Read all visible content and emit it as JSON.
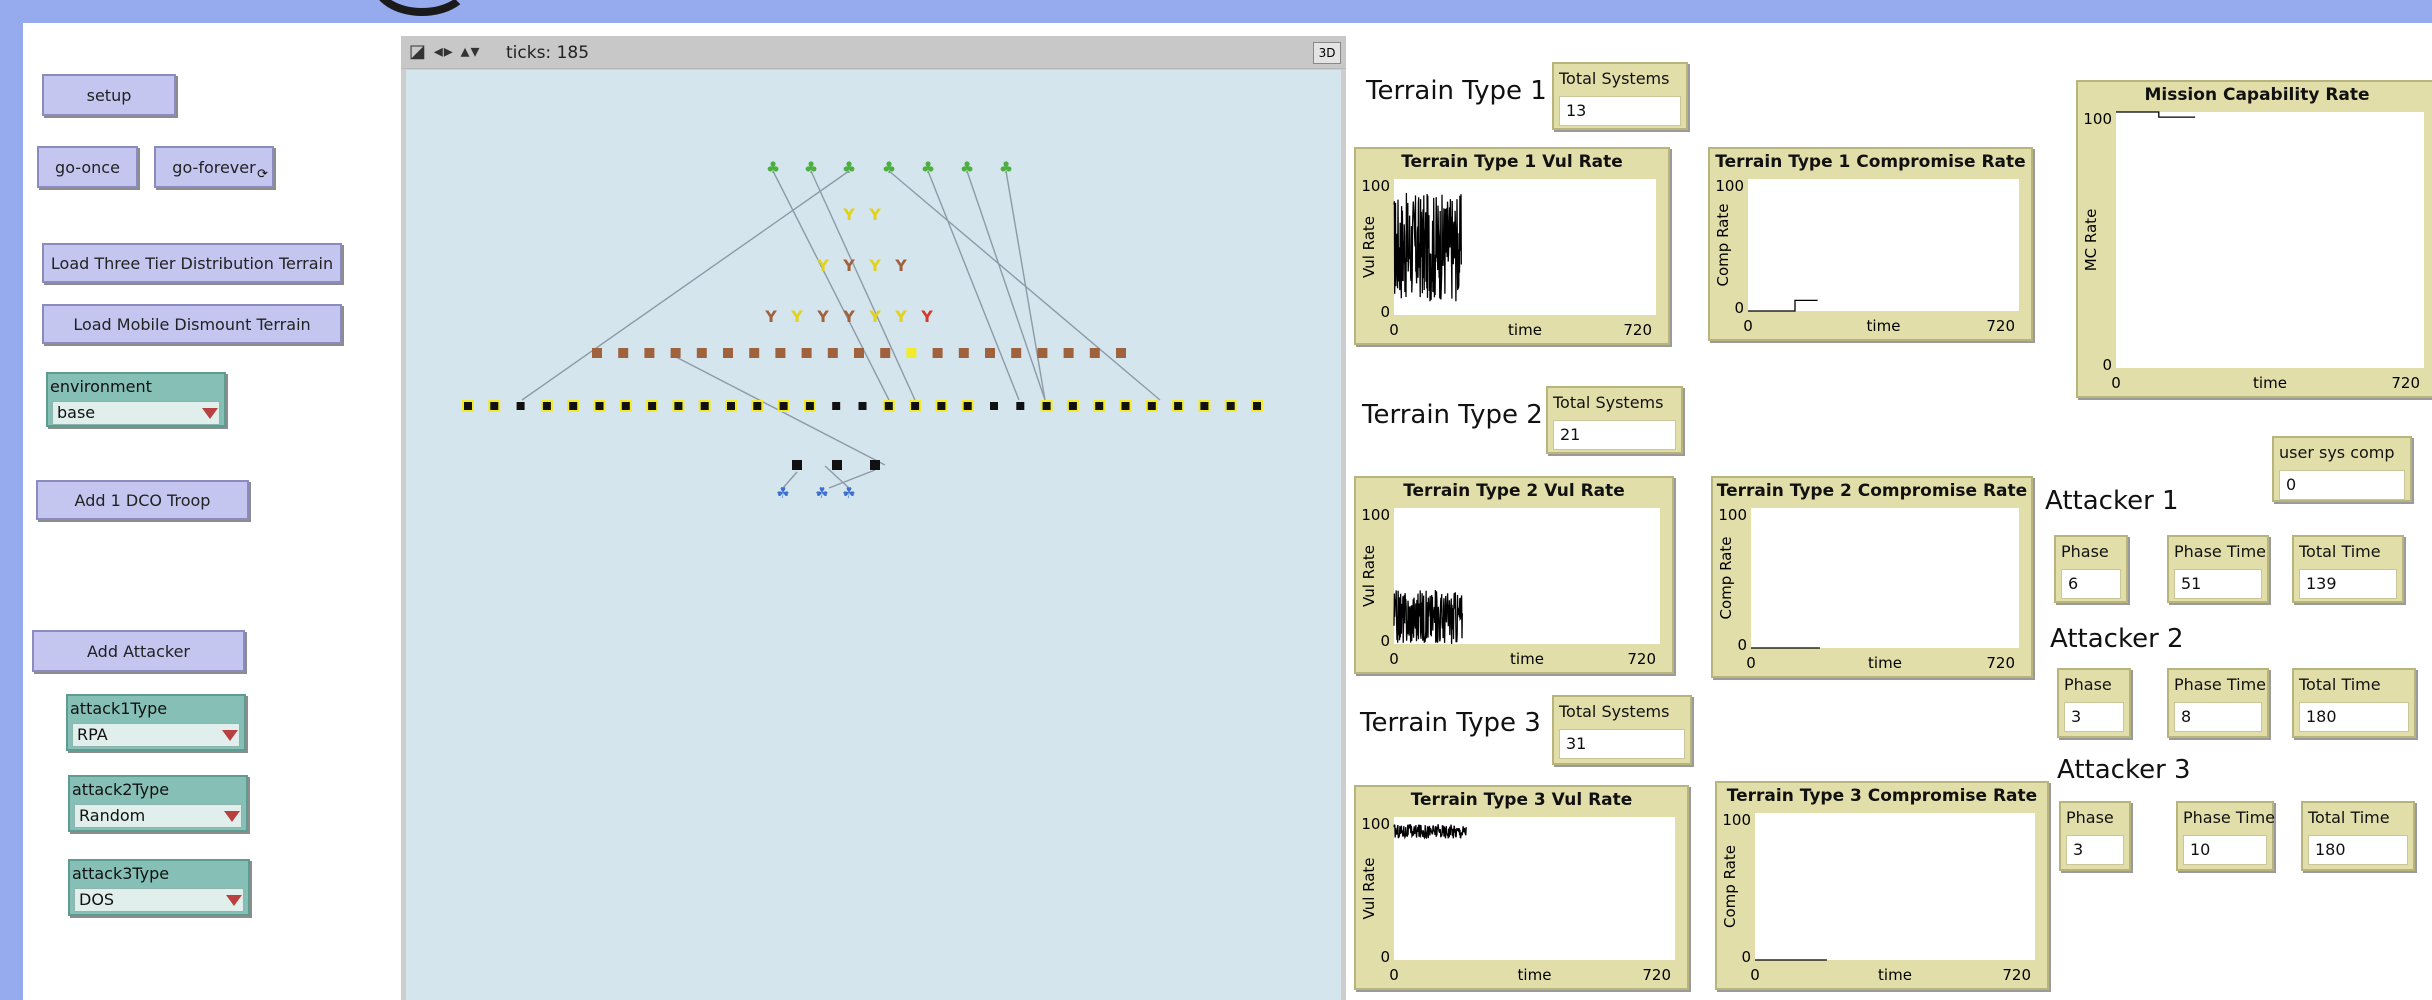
{
  "buttons": {
    "setup": "setup",
    "go_once": "go-once",
    "go_forever": "go-forever",
    "load_three_tier": "Load Three Tier Distribution Terrain",
    "load_mobile": "Load Mobile Dismount Terrain",
    "add_dco": "Add 1 DCO Troop",
    "add_attacker": "Add Attacker"
  },
  "choosers": {
    "environment": {
      "label": "environment",
      "value": "base"
    },
    "attack1": {
      "label": "attack1Type",
      "value": "RPA"
    },
    "attack2": {
      "label": "attack2Type",
      "value": "Random"
    },
    "attack3": {
      "label": "attack3Type",
      "value": "DOS"
    }
  },
  "view": {
    "ticks_label": "ticks: 185",
    "btn3d": "3D",
    "icons": "◪ ◂▸ ▴▾"
  },
  "terrains": [
    {
      "title": "Terrain Type 1",
      "total_label": "Total Systems",
      "total": "13"
    },
    {
      "title": "Terrain Type 2",
      "total_label": "Total Systems",
      "total": "21"
    },
    {
      "title": "Terrain Type 3",
      "total_label": "Total Systems",
      "total": "31"
    }
  ],
  "attackers": [
    {
      "title": "Attacker 1",
      "phase_label": "Phase",
      "phase": "6",
      "phase_time_label": "Phase Time",
      "phase_time": "51",
      "total_time_label": "Total Time",
      "total_time": "139"
    },
    {
      "title": "Attacker 2",
      "phase_label": "Phase",
      "phase": "3",
      "phase_time_label": "Phase Time",
      "phase_time": "8",
      "total_time_label": "Total Time",
      "total_time": "180"
    },
    {
      "title": "Attacker 3",
      "phase_label": "Phase",
      "phase": "3",
      "phase_time_label": "Phase Time",
      "phase_time": "10",
      "total_time_label": "Total Time",
      "total_time": "180"
    }
  ],
  "user_sys_comp": {
    "label": "user sys comp",
    "value": "0"
  },
  "chart_data": [
    {
      "type": "line",
      "title": "Terrain Type 1 Vul Rate",
      "xlabel": "time",
      "ylabel": "Vul Rate",
      "xlim": [
        0,
        720
      ],
      "ylim": [
        0,
        100
      ],
      "series": [
        {
          "x": [
            0,
            185
          ],
          "y_range": [
            10,
            90
          ],
          "style": "noisy"
        }
      ]
    },
    {
      "type": "line",
      "title": "Terrain Type 1 Compromise Rate",
      "xlabel": "time",
      "ylabel": "Comp Rate",
      "xlim": [
        0,
        720
      ],
      "ylim": [
        0,
        100
      ],
      "series": [
        {
          "x": [
            0,
            125,
            125,
            185
          ],
          "y": [
            0,
            0,
            8,
            8
          ]
        }
      ]
    },
    {
      "type": "line",
      "title": "Terrain Type 2 Vul Rate",
      "xlabel": "time",
      "ylabel": "Vul Rate",
      "xlim": [
        0,
        720
      ],
      "ylim": [
        0,
        100
      ],
      "series": [
        {
          "x": [
            0,
            185
          ],
          "y_range": [
            0,
            40
          ],
          "style": "noisy"
        }
      ]
    },
    {
      "type": "line",
      "title": "Terrain Type 2 Compromise Rate",
      "xlabel": "time",
      "ylabel": "Comp Rate",
      "xlim": [
        0,
        720
      ],
      "ylim": [
        0,
        100
      ],
      "series": [
        {
          "x": [
            0,
            185
          ],
          "y": [
            0,
            0
          ]
        }
      ]
    },
    {
      "type": "line",
      "title": "Terrain Type 3 Vul Rate",
      "xlabel": "time",
      "ylabel": "Vul Rate",
      "xlim": [
        0,
        720
      ],
      "ylim": [
        0,
        100
      ],
      "series": [
        {
          "x": [
            0,
            185
          ],
          "y_range": [
            85,
            95
          ],
          "style": "noisy"
        }
      ]
    },
    {
      "type": "line",
      "title": "Terrain Type 3 Compromise Rate",
      "xlabel": "time",
      "ylabel": "Comp Rate",
      "xlim": [
        0,
        720
      ],
      "ylim": [
        0,
        100
      ],
      "series": [
        {
          "x": [
            0,
            185
          ],
          "y": [
            0,
            0
          ]
        }
      ]
    },
    {
      "type": "line",
      "title": "Mission Capability Rate",
      "xlabel": "time",
      "ylabel": "MC Rate",
      "xlim": [
        0,
        720
      ],
      "ylim": [
        0,
        100
      ],
      "series": [
        {
          "x": [
            0,
            100,
            100,
            185
          ],
          "y": [
            100,
            100,
            98,
            98
          ]
        }
      ]
    }
  ],
  "colors": {
    "accent": "#96abed",
    "button": "#c4c6f0",
    "chooser": "#85bfb5",
    "monitor": "#e1deaa",
    "world": "#d4e5ee"
  }
}
